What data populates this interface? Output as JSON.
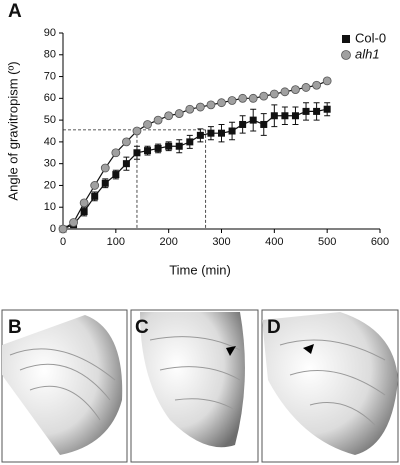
{
  "panel_labels": [
    "A",
    "B",
    "C",
    "D"
  ],
  "chart_data": {
    "type": "line",
    "x_label": "Time (min)",
    "y_label": "Angle of gravitropism (º)",
    "x": [
      0,
      20,
      40,
      60,
      80,
      100,
      120,
      140,
      160,
      180,
      200,
      220,
      240,
      260,
      280,
      300,
      320,
      340,
      360,
      380,
      400,
      420,
      440,
      460,
      480,
      500
    ],
    "series": [
      {
        "name": "Col-0",
        "color": "#111111",
        "marker": "square",
        "values": [
          0,
          2,
          8,
          15,
          21,
          25,
          30,
          35,
          36,
          37,
          38,
          38,
          40,
          43,
          44,
          44,
          45,
          48,
          50,
          48,
          52,
          52,
          52,
          54,
          54,
          55
        ],
        "errors": [
          0.5,
          1,
          2,
          2,
          2,
          2,
          3,
          3,
          2,
          2,
          2,
          3,
          3,
          3,
          3,
          4,
          4,
          4,
          5,
          5,
          5,
          4,
          4,
          4,
          4,
          3
        ]
      },
      {
        "name": "alh1",
        "color": "#a0a0a0",
        "marker": "circle",
        "values": [
          0,
          3,
          12,
          20,
          28,
          35,
          40,
          45,
          48,
          50,
          52,
          53,
          55,
          56,
          57,
          58,
          59,
          60,
          60,
          61,
          62,
          63,
          64,
          65,
          66,
          68
        ]
      }
    ],
    "guides": {
      "y": 45.5,
      "x": [
        140,
        270
      ]
    },
    "xlim": [
      0,
      600
    ],
    "xticks": [
      0,
      100,
      200,
      300,
      400,
      500,
      600
    ],
    "ylim": [
      0,
      90
    ],
    "yticks": [
      0,
      10,
      20,
      30,
      40,
      50,
      60,
      70,
      80,
      90
    ],
    "legend": "upper right"
  }
}
